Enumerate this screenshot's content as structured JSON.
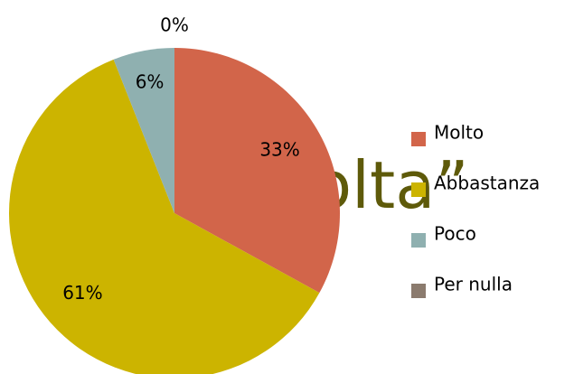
{
  "chart_data": {
    "type": "pie",
    "annotation": "olta”",
    "categories": [
      "Molto",
      "Abbastanza",
      "Poco",
      "Per nulla"
    ],
    "values": [
      33,
      61,
      6,
      0
    ],
    "value_labels": [
      "33%",
      "61%",
      "6%",
      "0%"
    ],
    "colors": [
      "#d2654a",
      "#ccb400",
      "#8fb0b0",
      "#8b7b6e"
    ],
    "legend": "right"
  }
}
